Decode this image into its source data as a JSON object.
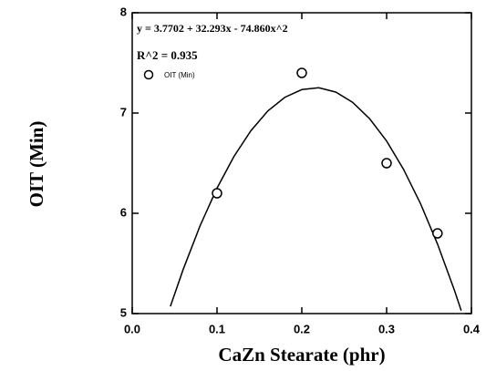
{
  "chart_data": {
    "type": "scatter",
    "annotations": [
      "y = 3.7702 + 32.293x - 74.860x^2",
      "R^2 = 0.935"
    ],
    "xlabel": "CaZn Stearate (phr)",
    "ylabel": "OIT (Min)",
    "series": [
      {
        "name": "OIT (Min)",
        "color": "#000000",
        "x": [
          0.1,
          0.2,
          0.3,
          0.36
        ],
        "values": [
          6.2,
          7.4,
          6.5,
          5.8
        ]
      }
    ],
    "fit": {
      "color": "#000000",
      "x": [
        0.045,
        0.06,
        0.08,
        0.1,
        0.12,
        0.14,
        0.16,
        0.18,
        0.2,
        0.22,
        0.24,
        0.26,
        0.28,
        0.3,
        0.32,
        0.34,
        0.36,
        0.38,
        0.388
      ],
      "values": [
        5.072,
        5.438,
        5.875,
        6.251,
        6.567,
        6.824,
        7.021,
        7.157,
        7.234,
        7.252,
        7.209,
        7.106,
        6.943,
        6.721,
        6.438,
        6.096,
        5.694,
        5.232,
        5.03
      ]
    },
    "xlim": [
      0,
      0.4
    ],
    "xticks": [
      {
        "value": 0,
        "label": "0.0"
      },
      0.1,
      0.2,
      0.3,
      0.4
    ],
    "ylim": [
      5,
      8
    ],
    "yticks": [
      5,
      6,
      7,
      8
    ],
    "grid": false
  }
}
